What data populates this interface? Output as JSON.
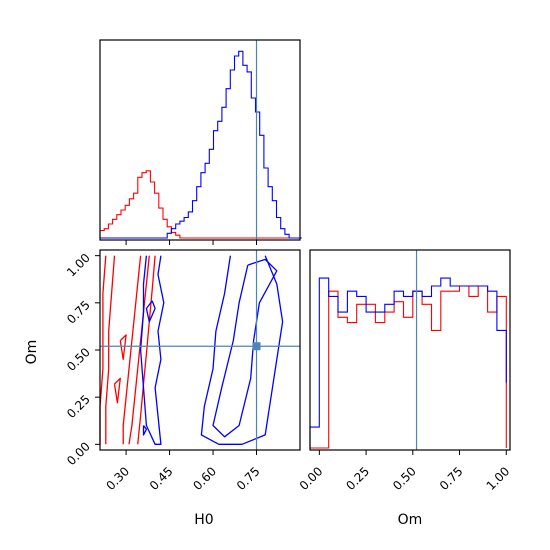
{
  "chart_data": {
    "type": "corner",
    "parameters": [
      "H0",
      "Om"
    ],
    "truths": {
      "H0": 0.75,
      "Om": 0.52
    },
    "truth_color": "#4c86b8",
    "series": [
      {
        "color": "#ff0000"
      },
      {
        "color": "#0000ff"
      }
    ],
    "panels": [
      {
        "id": "hist-H0",
        "type": "histogram",
        "x_param": "H0",
        "xlim": [
          0.21,
          0.9
        ],
        "bin_edges": [
          0.21,
          0.2245,
          0.239,
          0.2535,
          0.268,
          0.2825,
          0.297,
          0.3115,
          0.326,
          0.3405,
          0.355,
          0.3695,
          0.384,
          0.3985,
          0.413,
          0.4275,
          0.442,
          0.4565,
          0.471,
          0.4855,
          0.5,
          0.5145,
          0.529,
          0.5435,
          0.558,
          0.5725,
          0.587,
          0.6015,
          0.616,
          0.6305,
          0.645,
          0.6595,
          0.674,
          0.6885,
          0.703,
          0.7175,
          0.732,
          0.7465,
          0.761,
          0.7755,
          0.79,
          0.8045,
          0.819,
          0.8335,
          0.848,
          0.8625,
          0.877,
          0.8915,
          0.906
        ],
        "counts": [
          [
            8,
            10,
            15,
            20,
            25,
            30,
            35,
            42,
            48,
            65,
            70,
            72,
            60,
            48,
            32,
            20,
            12,
            6,
            3,
            0,
            0,
            0,
            0,
            0,
            0,
            0,
            0,
            0,
            0,
            0,
            0,
            0,
            0,
            0,
            0,
            0,
            0,
            0,
            0,
            0,
            0,
            0,
            0,
            0,
            0,
            0,
            0,
            0
          ],
          [
            0,
            0,
            0,
            0,
            0,
            0,
            0,
            0,
            0,
            0,
            0,
            0,
            0,
            0,
            0,
            0,
            5,
            10,
            15,
            18,
            22,
            28,
            40,
            55,
            70,
            80,
            95,
            115,
            125,
            140,
            160,
            180,
            195,
            200,
            185,
            178,
            150,
            135,
            110,
            75,
            55,
            40,
            22,
            10,
            4,
            0,
            0,
            0
          ]
        ]
      },
      {
        "id": "hist-Om",
        "type": "histogram",
        "x_param": "Om",
        "xlim": [
          -0.05,
          1.02
        ],
        "xticks": [
          "0.00",
          "0.25",
          "0.50",
          "0.75",
          "1.00"
        ],
        "xtick_values": [
          0,
          0.25,
          0.5,
          0.75,
          1.0
        ],
        "xlabel": "Om",
        "bin_edges": [
          -0.05,
          0.0,
          0.05,
          0.1,
          0.15,
          0.2,
          0.25,
          0.3,
          0.35,
          0.4,
          0.45,
          0.5,
          0.55,
          0.6,
          0.65,
          0.7,
          0.75,
          0.8,
          0.85,
          0.9,
          0.95,
          1.0
        ],
        "counts": [
          [
            0,
            0,
            60,
            50,
            48,
            55,
            55,
            48,
            52,
            56,
            50,
            60,
            55,
            45,
            60,
            60,
            62,
            58,
            62,
            52,
            58,
            0
          ],
          [
            8,
            65,
            58,
            52,
            60,
            58,
            52,
            52,
            55,
            60,
            58,
            60,
            58,
            62,
            65,
            62,
            62,
            62,
            62,
            60,
            45,
            25
          ]
        ]
      },
      {
        "id": "contour-H0-Om",
        "type": "contour",
        "x_param": "H0",
        "y_param": "Om",
        "xlim": [
          0.21,
          0.9
        ],
        "ylim": [
          -0.03,
          1.03
        ],
        "xticks": [
          "0.30",
          "0.45",
          "0.60",
          "0.75"
        ],
        "xtick_values": [
          0.3,
          0.45,
          0.6,
          0.75
        ],
        "yticks": [
          "0.00",
          "0.25",
          "0.50",
          "0.75",
          "1.00"
        ],
        "ytick_values": [
          0,
          0.25,
          0.5,
          0.75,
          1.0
        ],
        "xlabel": "H0",
        "ylabel": "Om",
        "contours": [
          {
            "series": 0,
            "lines": [
              [
                [
                  0.35,
                  1.0
                ],
                [
                  0.34,
                  0.85
                ],
                [
                  0.33,
                  0.7
                ],
                [
                  0.32,
                  0.55
                ],
                [
                  0.31,
                  0.4
                ],
                [
                  0.3,
                  0.25
                ],
                [
                  0.29,
                  0.1
                ],
                [
                  0.29,
                  0.0
                ]
              ],
              [
                [
                  0.38,
                  1.0
                ],
                [
                  0.37,
                  0.85
                ],
                [
                  0.36,
                  0.7
                ],
                [
                  0.35,
                  0.55
                ],
                [
                  0.34,
                  0.4
                ],
                [
                  0.33,
                  0.25
                ],
                [
                  0.32,
                  0.1
                ],
                [
                  0.31,
                  0.0
                ]
              ],
              [
                [
                  0.4,
                  1.0
                ],
                [
                  0.39,
                  0.82
                ],
                [
                  0.38,
                  0.65
                ],
                [
                  0.37,
                  0.48
                ],
                [
                  0.36,
                  0.32
                ],
                [
                  0.35,
                  0.15
                ],
                [
                  0.34,
                  0.0
                ]
              ],
              [
                [
                  0.26,
                  1.0
                ],
                [
                  0.25,
                  0.8
                ],
                [
                  0.24,
                  0.6
                ],
                [
                  0.24,
                  0.4
                ],
                [
                  0.23,
                  0.2
                ],
                [
                  0.23,
                  0.0
                ]
              ],
              [
                [
                  0.23,
                  1.0
                ],
                [
                  0.22,
                  0.8
                ],
                [
                  0.22,
                  0.6
                ],
                [
                  0.22,
                  0.4
                ],
                [
                  0.21,
                  0.2
                ],
                [
                  0.21,
                  0.0
                ]
              ],
              [
                [
                  0.28,
                  0.55
                ],
                [
                  0.3,
                  0.58
                ],
                [
                  0.29,
                  0.45
                ],
                [
                  0.28,
                  0.55
                ]
              ],
              [
                [
                  0.26,
                  0.32
                ],
                [
                  0.28,
                  0.35
                ],
                [
                  0.27,
                  0.22
                ],
                [
                  0.26,
                  0.32
                ]
              ]
            ]
          },
          {
            "series": 1,
            "lines": [
              [
                [
                  0.37,
                  1.0
                ],
                [
                  0.36,
                  0.85
                ],
                [
                  0.36,
                  0.7
                ],
                [
                  0.35,
                  0.5
                ],
                [
                  0.36,
                  0.3
                ],
                [
                  0.37,
                  0.1
                ],
                [
                  0.4,
                  0.0
                ],
                [
                  0.42,
                  0.0
                ],
                [
                  0.41,
                  0.15
                ],
                [
                  0.4,
                  0.3
                ],
                [
                  0.42,
                  0.45
                ],
                [
                  0.41,
                  0.6
                ],
                [
                  0.43,
                  0.75
                ],
                [
                  0.41,
                  0.9
                ],
                [
                  0.42,
                  1.0
                ]
              ],
              [
                [
                  0.39,
                  0.76
                ],
                [
                  0.4,
                  0.72
                ],
                [
                  0.38,
                  0.65
                ],
                [
                  0.37,
                  0.72
                ],
                [
                  0.39,
                  0.76
                ]
              ],
              [
                [
                  0.72,
                  0.95
                ],
                [
                  0.69,
                  0.75
                ],
                [
                  0.67,
                  0.55
                ],
                [
                  0.63,
                  0.3
                ],
                [
                  0.6,
                  0.1
                ],
                [
                  0.64,
                  0.04
                ],
                [
                  0.69,
                  0.1
                ],
                [
                  0.73,
                  0.35
                ],
                [
                  0.74,
                  0.55
                ],
                [
                  0.76,
                  0.75
                ],
                [
                  0.82,
                  0.92
                ],
                [
                  0.78,
                  0.98
                ],
                [
                  0.72,
                  0.95
                ]
              ],
              [
                [
                  0.78,
                  1.0
                ],
                [
                  0.82,
                  0.85
                ],
                [
                  0.84,
                  0.65
                ],
                [
                  0.82,
                  0.45
                ],
                [
                  0.8,
                  0.25
                ],
                [
                  0.78,
                  0.05
                ],
                [
                  0.7,
                  0.0
                ],
                [
                  0.62,
                  0.0
                ],
                [
                  0.56,
                  0.05
                ],
                [
                  0.57,
                  0.2
                ],
                [
                  0.6,
                  0.4
                ],
                [
                  0.61,
                  0.6
                ],
                [
                  0.64,
                  0.8
                ],
                [
                  0.66,
                  1.0
                ]
              ],
              [
                [
                  0.36,
                  0.1
                ],
                [
                  0.37,
                  0.08
                ],
                [
                  0.36,
                  0.05
                ],
                [
                  0.36,
                  0.1
                ]
              ]
            ]
          }
        ]
      }
    ]
  }
}
